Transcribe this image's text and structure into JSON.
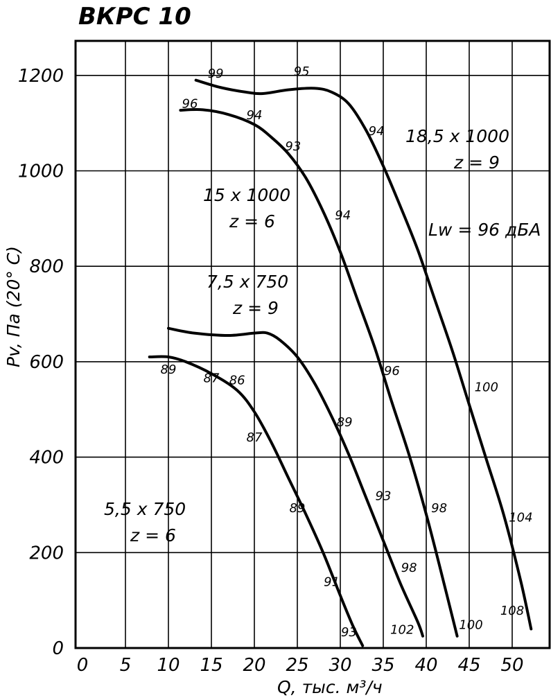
{
  "chart_data": {
    "type": "line",
    "title": "ВКРС 10",
    "xlabel": "Q, тыс. м³/ч",
    "ylabel": "Pv, Па (20° C)",
    "xlim": [
      0,
      52.5
    ],
    "ylim": [
      0,
      1270
    ],
    "x_ticks": [
      "0",
      "5",
      "10",
      "15",
      "20",
      "25",
      "30",
      "35",
      "40",
      "45",
      "50"
    ],
    "y_ticks": [
      "0",
      "200",
      "400",
      "600",
      "800",
      "1000",
      "1200"
    ],
    "grid": true,
    "note": "Lw = 96 дБА",
    "series": [
      {
        "name": "5,5 x 750 z = 6",
        "label_line1": "5,5 x 750",
        "label_line2": "z = 6",
        "points": [
          [
            7.8,
            610
          ],
          [
            10,
            610
          ],
          [
            12,
            600
          ],
          [
            15,
            575
          ],
          [
            18,
            540
          ],
          [
            20,
            495
          ],
          [
            22,
            430
          ],
          [
            24,
            355
          ],
          [
            26,
            280
          ],
          [
            28,
            200
          ],
          [
            30,
            110
          ],
          [
            31.5,
            45
          ],
          [
            32.6,
            5
          ]
        ],
        "annotations": [
          {
            "text": "89",
            "q": 10,
            "p": 575
          },
          {
            "text": "87",
            "q": 15,
            "p": 557
          },
          {
            "text": "86",
            "q": 18,
            "p": 553
          },
          {
            "text": "87",
            "q": 20,
            "p": 433
          },
          {
            "text": "89",
            "q": 25,
            "p": 285
          },
          {
            "text": "91",
            "q": 29,
            "p": 130
          },
          {
            "text": "93",
            "q": 31,
            "p": 25
          }
        ]
      },
      {
        "name": "7,5 x 750 z = 9",
        "label_line1": "7,5 x 750",
        "label_line2": "z = 9",
        "points": [
          [
            10,
            670
          ],
          [
            13,
            660
          ],
          [
            17,
            655
          ],
          [
            20,
            660
          ],
          [
            21.5,
            660
          ],
          [
            23,
            645
          ],
          [
            25,
            610
          ],
          [
            27,
            555
          ],
          [
            29,
            485
          ],
          [
            31,
            405
          ],
          [
            33,
            315
          ],
          [
            35,
            225
          ],
          [
            37,
            135
          ],
          [
            39,
            55
          ],
          [
            39.6,
            25
          ]
        ],
        "annotations": [
          {
            "text": "89",
            "q": 30.5,
            "p": 465
          },
          {
            "text": "93",
            "q": 35,
            "p": 310
          },
          {
            "text": "98",
            "q": 38,
            "p": 160
          },
          {
            "text": "102",
            "q": 37.2,
            "p": 30
          }
        ]
      },
      {
        "name": "15 x 1000 z = 6",
        "label_line1": "15 x 1000",
        "label_line2": "z = 6",
        "points": [
          [
            11.4,
            1127
          ],
          [
            14,
            1128
          ],
          [
            17,
            1118
          ],
          [
            20,
            1097
          ],
          [
            22,
            1070
          ],
          [
            24,
            1035
          ],
          [
            26,
            985
          ],
          [
            28,
            915
          ],
          [
            30,
            830
          ],
          [
            32,
            730
          ],
          [
            34,
            630
          ],
          [
            36,
            515
          ],
          [
            38,
            405
          ],
          [
            40,
            280
          ],
          [
            42,
            140
          ],
          [
            43.6,
            25
          ]
        ],
        "annotations": [
          {
            "text": "96",
            "q": 12.5,
            "p": 1132
          },
          {
            "text": "94",
            "q": 20,
            "p": 1108
          },
          {
            "text": "93",
            "q": 24.5,
            "p": 1043
          },
          {
            "text": "94",
            "q": 30.3,
            "p": 898
          },
          {
            "text": "96",
            "q": 36,
            "p": 572
          },
          {
            "text": "98",
            "q": 41.5,
            "p": 285
          },
          {
            "text": "100",
            "q": 45.2,
            "p": 40
          }
        ]
      },
      {
        "name": "18,5 x 1000 z = 9",
        "label_line1": "18,5 x 1000",
        "label_line2": "z = 9",
        "points": [
          [
            13.2,
            1190
          ],
          [
            16,
            1175
          ],
          [
            19,
            1165
          ],
          [
            21,
            1162
          ],
          [
            24,
            1170
          ],
          [
            27,
            1173
          ],
          [
            29,
            1165
          ],
          [
            31,
            1140
          ],
          [
            33,
            1085
          ],
          [
            35,
            1010
          ],
          [
            37,
            925
          ],
          [
            39,
            835
          ],
          [
            41,
            730
          ],
          [
            43,
            625
          ],
          [
            45,
            510
          ],
          [
            47,
            395
          ],
          [
            49,
            280
          ],
          [
            51,
            140
          ],
          [
            52.2,
            40
          ]
        ],
        "annotations": [
          {
            "text": "99",
            "q": 15.5,
            "p": 1195
          },
          {
            "text": "95",
            "q": 25.5,
            "p": 1200
          },
          {
            "text": "94",
            "q": 34.2,
            "p": 1075
          },
          {
            "text": "100",
            "q": 47,
            "p": 538
          },
          {
            "text": "104",
            "q": 51,
            "p": 265
          },
          {
            "text": "108",
            "q": 50,
            "p": 70
          }
        ]
      }
    ]
  }
}
